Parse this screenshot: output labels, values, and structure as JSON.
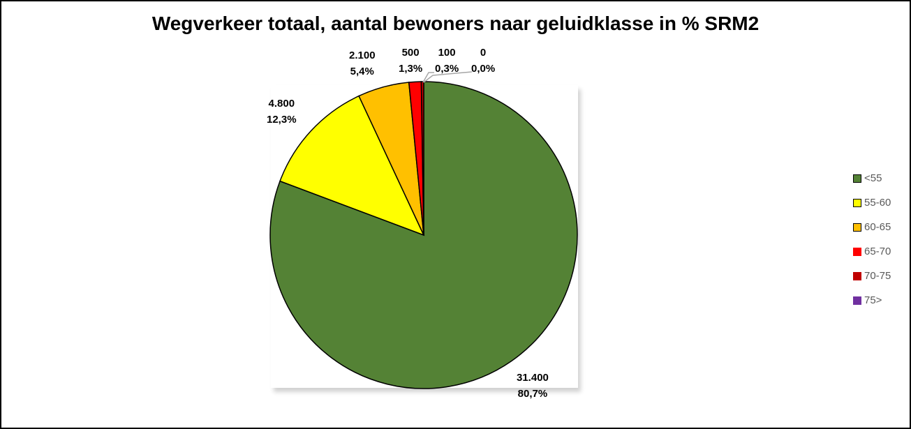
{
  "chart_data": {
    "type": "pie",
    "title": "Wegverkeer totaal, aantal bewoners naar geluidklasse in % SRM2",
    "categories": [
      "<55",
      "55-60",
      "60-65",
      "65-70",
      "70-75",
      "75>"
    ],
    "values": [
      31400,
      4800,
      2100,
      500,
      100,
      0
    ],
    "percentages": [
      80.7,
      12.3,
      5.4,
      1.3,
      0.3,
      0.0
    ],
    "colors": [
      "#548235",
      "#FFFF00",
      "#FFC000",
      "#FF0000",
      "#C00000",
      "#7030A0"
    ],
    "data_labels": [
      {
        "value": "31.400",
        "pct": "80,7%"
      },
      {
        "value": "4.800",
        "pct": "12,3%"
      },
      {
        "value": "2.100",
        "pct": "5,4%"
      },
      {
        "value": "500",
        "pct": "1,3%"
      },
      {
        "value": "100",
        "pct": "0,3%"
      },
      {
        "value": "0",
        "pct": "0,0%"
      }
    ],
    "legend_position": "right",
    "start_angle_deg": 0,
    "direction": "counterclockwise"
  }
}
